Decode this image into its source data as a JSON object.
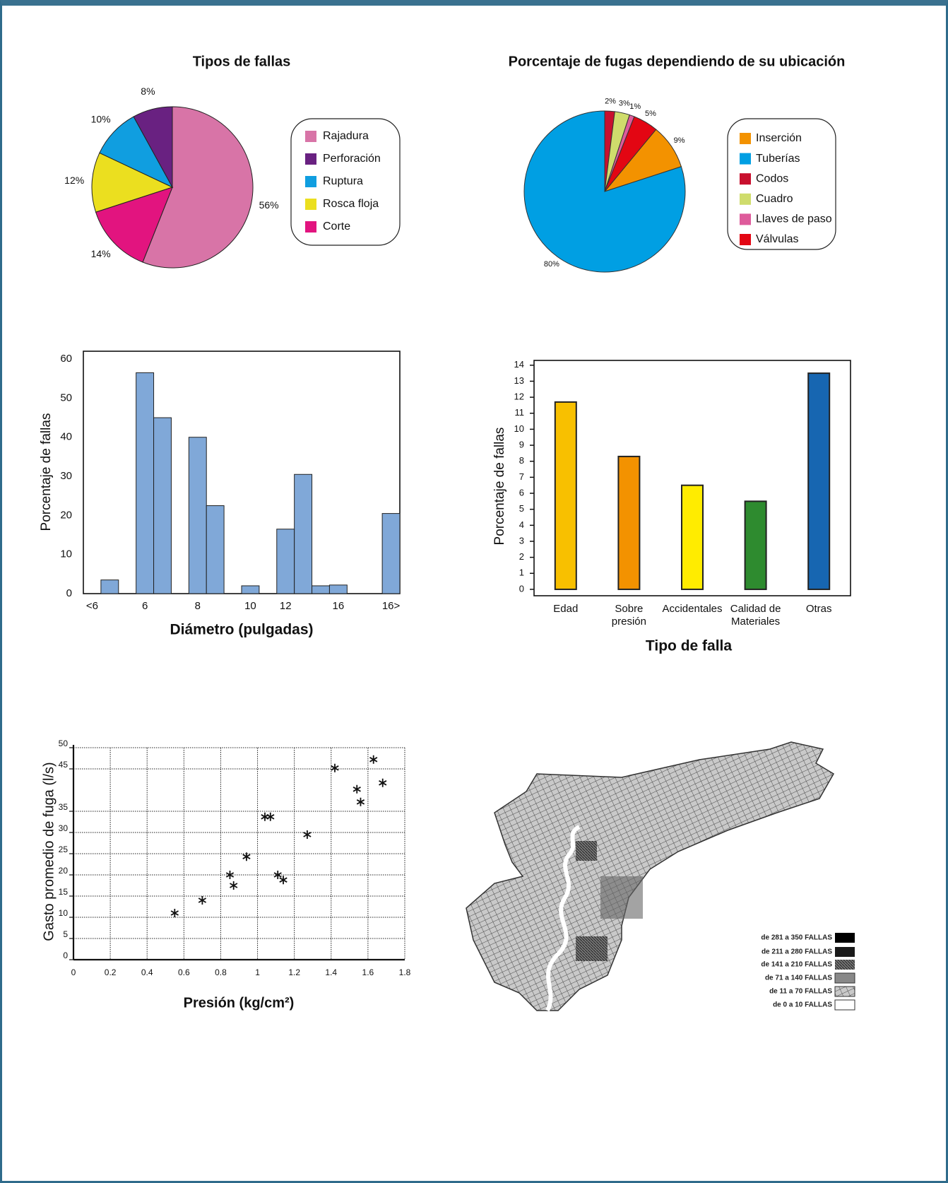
{
  "chart_data": [
    {
      "type": "pie",
      "title": "Tipos de fallas",
      "categories": [
        "Rajadura",
        "Perforación",
        "Ruptura",
        "Rosca floja",
        "Corte"
      ],
      "values": [
        56,
        8,
        10,
        12,
        14
      ],
      "value_labels": [
        "56%",
        "8%",
        "10%",
        "12%",
        "14%"
      ],
      "colors": [
        "#d874a7",
        "#692181",
        "#109ee0",
        "#ebdf1f",
        "#e2147f"
      ],
      "startangle": 201.6,
      "direction": "counterclockwise",
      "legend": "right"
    },
    {
      "type": "pie",
      "title": "Porcentaje de fugas dependiendo de su ubicación",
      "categories": [
        "Inserción",
        "Tuberías",
        "Codos",
        "Cuadro",
        "Llaves de paso",
        "Válvulas"
      ],
      "values": [
        9,
        80,
        2,
        3,
        1,
        5
      ],
      "value_labels": [
        "9%",
        "80%",
        "2%",
        "3%",
        "1%",
        "5%"
      ],
      "colors": [
        "#f39200",
        "#009fe3",
        "#c8102e",
        "#cfdc6c",
        "#de5b9b",
        "#e30613"
      ],
      "startangle": 39.6,
      "direction": "clockwise",
      "legend": "right"
    },
    {
      "type": "bar",
      "xlabel": "Diámetro (pulgadas)",
      "ylabel": "Porcentaje de fallas",
      "categories": [
        "<6",
        null,
        null,
        "6",
        null,
        null,
        "8",
        null,
        null,
        "10",
        null,
        "12",
        null,
        null,
        "16",
        null,
        null,
        "16>"
      ],
      "values": [
        null,
        3.5,
        null,
        56.5,
        45,
        null,
        40,
        22.5,
        null,
        2,
        null,
        16.5,
        30.5,
        2,
        2.2,
        null,
        null,
        20.5
      ],
      "color": "#80a8d8",
      "ylim": [
        0,
        62
      ],
      "yticks": [
        0,
        10,
        20,
        30,
        40,
        50,
        60
      ]
    },
    {
      "type": "bar",
      "xlabel": "Tipo de falla",
      "ylabel": "Porcentaje de fallas",
      "categories": [
        "Edad",
        "Sobre presión",
        "Accidentales",
        "Calidad de Materiales",
        "Otras"
      ],
      "values": [
        11.7,
        8.3,
        6.5,
        5.5,
        13.5
      ],
      "colors": [
        "#f8c000",
        "#f39200",
        "#ffec00",
        "#2e8b2f",
        "#1766b1"
      ],
      "ylim": [
        -0.4,
        14.3
      ],
      "yticks": [
        0,
        1,
        2,
        3,
        4,
        5,
        6,
        7,
        8,
        9,
        10,
        11,
        12,
        13,
        14
      ]
    },
    {
      "type": "scatter",
      "xlabel": "Presión (kg/cm²)",
      "ylabel": "Gasto promedio de fuga (l/s)",
      "x": [
        0.55,
        0.7,
        0.85,
        0.87,
        0.94,
        1.04,
        1.07,
        1.11,
        1.14,
        1.27,
        1.42,
        1.54,
        1.56,
        1.63,
        1.68
      ],
      "values": [
        11,
        14,
        20,
        17.5,
        24.3,
        33.7,
        33.7,
        20,
        18.8,
        29.5,
        45.2,
        40.2,
        37.2,
        47.2,
        41.7
      ],
      "marker": "asterisk",
      "color": "#111111",
      "xlim": [
        0,
        1.8
      ],
      "xticks": [
        0,
        0.2,
        0.4,
        0.6,
        0.8,
        1,
        1.2,
        1.4,
        1.6,
        1.8
      ],
      "ylim": [
        0,
        50
      ],
      "yticks": [
        0,
        5,
        10,
        15,
        20,
        25,
        30,
        35,
        45,
        50
      ],
      "grid": true
    }
  ],
  "map": {
    "legend": [
      "de 281 a 350 FALLAS",
      "de 211 a 280 FALLAS",
      "de 141 a 210 FALLAS",
      "de 71 a 140 FALLAS",
      "de 11 a 70 FALLAS",
      "de 0 a 10 FALLAS"
    ]
  }
}
